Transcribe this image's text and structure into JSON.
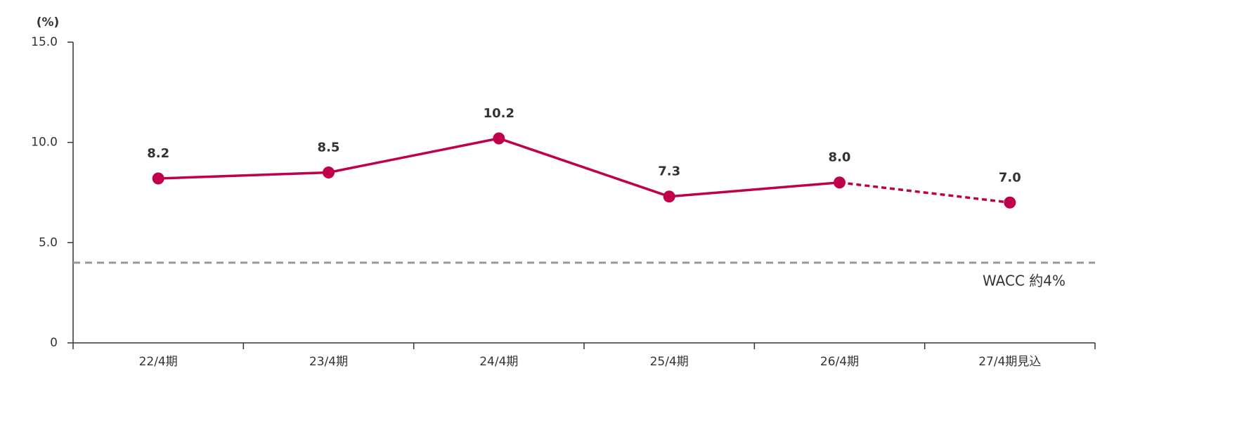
{
  "chart_data": {
    "type": "line",
    "y_axis_label": "(%)",
    "categories": [
      "22/4期",
      "23/4期",
      "24/4期",
      "25/4期",
      "26/4期",
      "27/4期見込"
    ],
    "series": [
      {
        "color": "#c0004a",
        "values": [
          8.2,
          8.5,
          10.2,
          7.3,
          8.0,
          7.0
        ],
        "value_labels": [
          "8.2",
          "8.5",
          "10.2",
          "7.3",
          "8.0",
          "7.0"
        ],
        "dashed_from_index": 4
      }
    ],
    "ylim": [
      0,
      15
    ],
    "yticks": [
      0,
      {
        "value": 5,
        "label": "5.0"
      },
      {
        "value": 10,
        "label": "10.0"
      },
      {
        "value": 15,
        "label": "15.0"
      }
    ],
    "reference_line": {
      "value": 4,
      "label": "WACC 約4%",
      "color": "#999999"
    }
  }
}
